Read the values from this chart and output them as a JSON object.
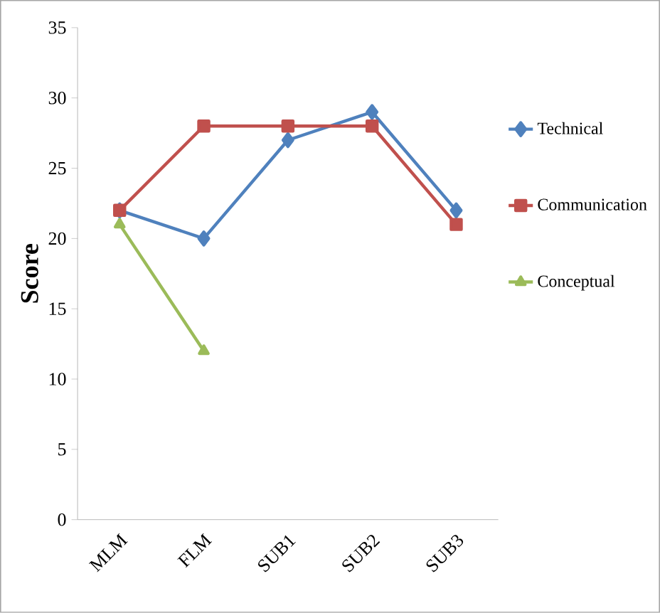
{
  "chart_data": {
    "type": "line",
    "ylabel": "Score",
    "categories": [
      "MLM",
      "FLM",
      "SUB1",
      "SUB2",
      "SUB3"
    ],
    "series": [
      {
        "name": "Technical",
        "color": "#4f81bd",
        "marker": "diamond",
        "values": [
          22,
          20,
          27,
          29,
          22
        ]
      },
      {
        "name": "Communication",
        "color": "#c0504d",
        "marker": "square",
        "values": [
          22,
          28,
          28,
          28,
          21
        ]
      },
      {
        "name": "Conceptual",
        "color": "#9bbb59",
        "marker": "triangle",
        "values": [
          21,
          12,
          null,
          null,
          null
        ]
      }
    ],
    "ylim": [
      0,
      35
    ],
    "yticks": [
      0,
      5,
      10,
      15,
      20,
      25,
      30,
      35
    ],
    "grid": false,
    "legend": "right",
    "line_style": "solid"
  }
}
